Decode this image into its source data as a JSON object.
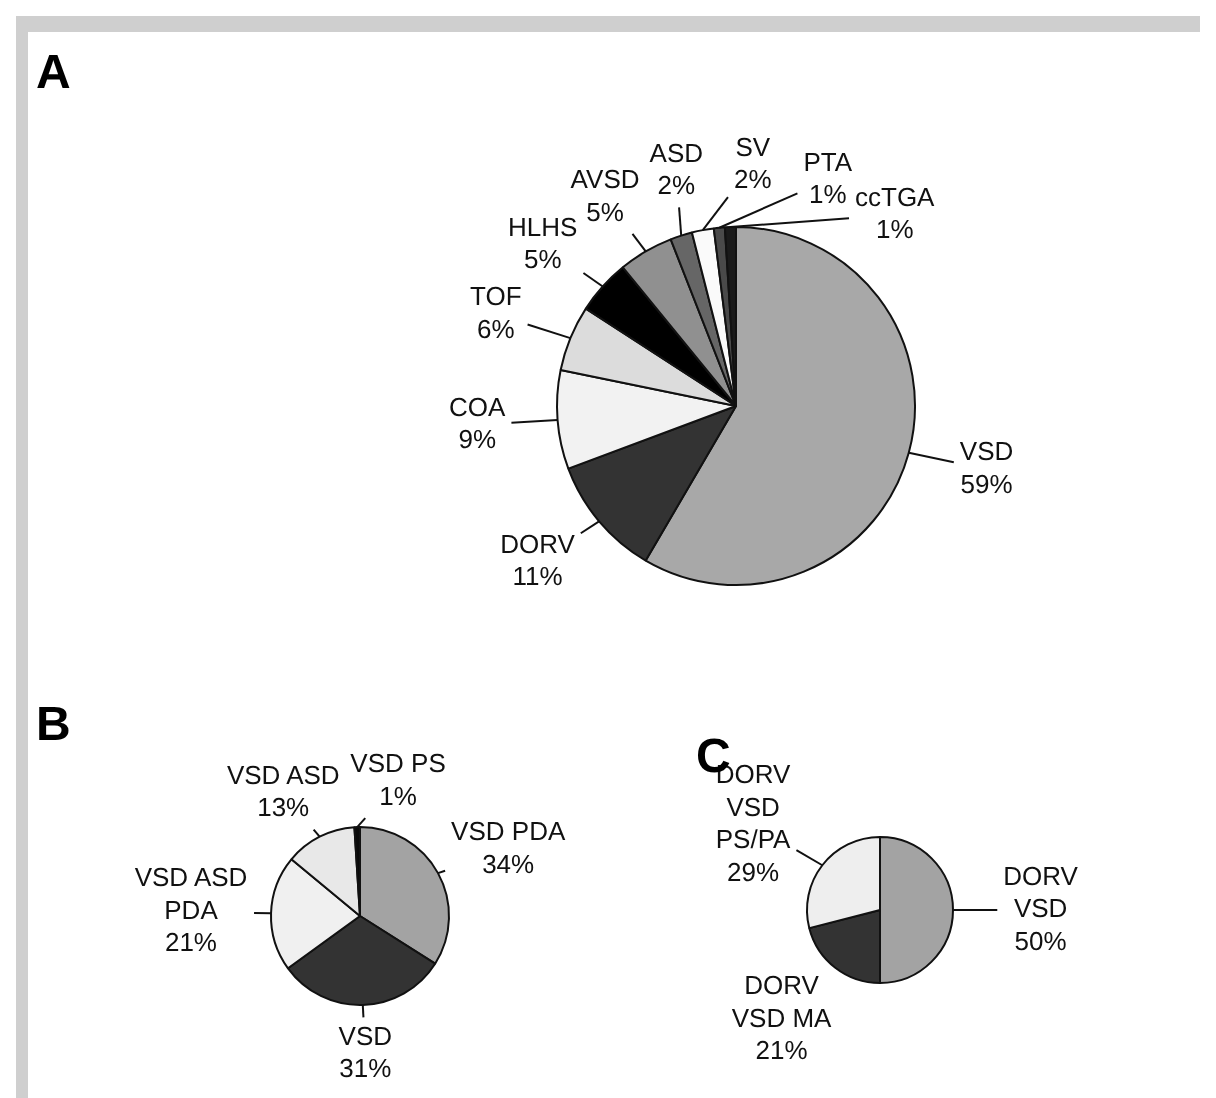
{
  "chart_data": [
    {
      "type": "pie",
      "title": "A",
      "categories": [
        "VSD",
        "DORV",
        "COA",
        "TOF",
        "HLHS",
        "AVSD",
        "ASD",
        "SV",
        "PTA",
        "ccTGA"
      ],
      "values": [
        59,
        11,
        9,
        6,
        5,
        5,
        2,
        2,
        1,
        1
      ],
      "value_labels": [
        "59%",
        "11%",
        "9%",
        "6%",
        "5%",
        "5%",
        "2%",
        "2%",
        "1%",
        "1%"
      ],
      "colors": [
        "#a8a8a8",
        "#333333",
        "#f2f2f2",
        "#dcdcdc",
        "#000000",
        "#909090",
        "#666666",
        "#fafafa",
        "#4a4a4a",
        "#1a1a1a"
      ]
    },
    {
      "type": "pie",
      "title": "B",
      "categories": [
        "VSD PDA",
        "VSD",
        "VSD ASD PDA",
        "VSD ASD",
        "VSD PS"
      ],
      "values": [
        34,
        31,
        21,
        13,
        1
      ],
      "value_labels": [
        "34%",
        "31%",
        "21%",
        "13%",
        "1%"
      ],
      "colors": [
        "#a3a3a3",
        "#333333",
        "#f0f0f0",
        "#e8e8e8",
        "#0a0a0a"
      ]
    },
    {
      "type": "pie",
      "title": "C",
      "categories": [
        "DORV VSD",
        "DORV VSD MA",
        "DORV VSD PS/PA"
      ],
      "values": [
        50,
        21,
        29
      ],
      "value_labels": [
        "50%",
        "21%",
        "29%"
      ],
      "colors": [
        "#a3a3a3",
        "#333333",
        "#eeeeee"
      ]
    }
  ]
}
